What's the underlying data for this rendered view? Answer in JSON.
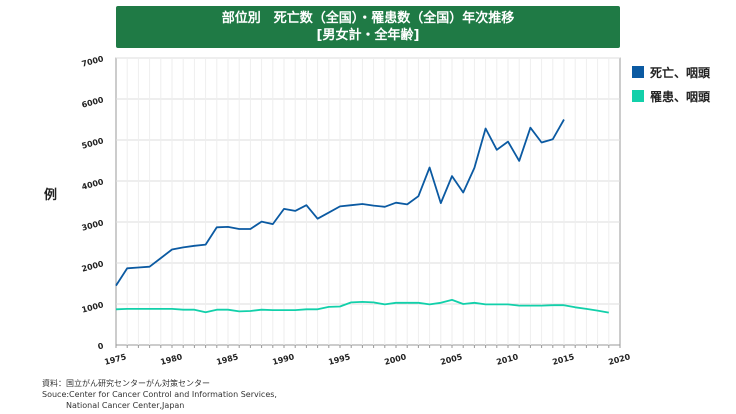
{
  "title": {
    "line1": "部位別　死亡数（全国）・罹患数（全国）年次推移",
    "line2": "[男女計・全年齢]"
  },
  "source": {
    "line1": "資料：国立がん研究センターがん対策センター",
    "line2": "Souce:Center for Cancer Control and Information Services,",
    "line3": "National Cancer Center,Japan"
  },
  "chart_data": {
    "type": "line",
    "title": "部位別　死亡数（全国）・罹患数（全国）年次推移 [男女計・全年齢]",
    "xlabel": "",
    "ylabel": "例",
    "xlim": [
      1975,
      2020
    ],
    "ylim": [
      0,
      7000
    ],
    "x_ticks": [
      1975,
      1980,
      1985,
      1990,
      1995,
      2000,
      2005,
      2010,
      2015,
      2020
    ],
    "y_ticks": [
      0,
      1000,
      2000,
      3000,
      4000,
      5000,
      6000,
      7000
    ],
    "grid": true,
    "legend_position": "right",
    "series": [
      {
        "name": "死亡、咽頭",
        "color": "#0b5aa2",
        "x": [
          1975,
          1976,
          1977,
          1978,
          1979,
          1980,
          1981,
          1982,
          1983,
          1984,
          1985,
          1986,
          1987,
          1988,
          1989,
          1990,
          1991,
          1992,
          1993,
          1994,
          1995,
          1996,
          1997,
          1998,
          1999,
          2000,
          2001,
          2002,
          2003,
          2004,
          2005,
          2006,
          2007,
          2008,
          2009,
          2010,
          2011,
          2012,
          2013,
          2014,
          2015
        ],
        "y": [
          1450,
          1870,
          1890,
          1910,
          2120,
          2330,
          2380,
          2420,
          2450,
          2870,
          2880,
          2830,
          2830,
          3010,
          2950,
          3320,
          3270,
          3410,
          3080,
          3230,
          3380,
          3410,
          3440,
          3400,
          3370,
          3470,
          3430,
          3630,
          4330,
          3460,
          4120,
          3720,
          4320,
          5280,
          4760,
          4960,
          4490,
          5300,
          4940,
          5020,
          5500
        ]
      },
      {
        "name": "罹患、咽頭",
        "color": "#12d0aa",
        "x": [
          1975,
          1976,
          1977,
          1978,
          1979,
          1980,
          1981,
          1982,
          1983,
          1984,
          1985,
          1986,
          1987,
          1988,
          1989,
          1990,
          1991,
          1992,
          1993,
          1994,
          1995,
          1996,
          1997,
          1998,
          1999,
          2000,
          2001,
          2002,
          2003,
          2004,
          2005,
          2006,
          2007,
          2008,
          2009,
          2010,
          2011,
          2012,
          2013,
          2014,
          2015,
          2016,
          2017,
          2018,
          2019
        ],
        "y": [
          870,
          880,
          880,
          880,
          880,
          880,
          860,
          860,
          800,
          860,
          860,
          820,
          830,
          860,
          850,
          850,
          850,
          870,
          870,
          930,
          940,
          1040,
          1050,
          1040,
          990,
          1030,
          1030,
          1030,
          990,
          1030,
          1100,
          1000,
          1030,
          990,
          990,
          990,
          960,
          960,
          960,
          970,
          970,
          920,
          880,
          840,
          790
        ]
      }
    ]
  }
}
